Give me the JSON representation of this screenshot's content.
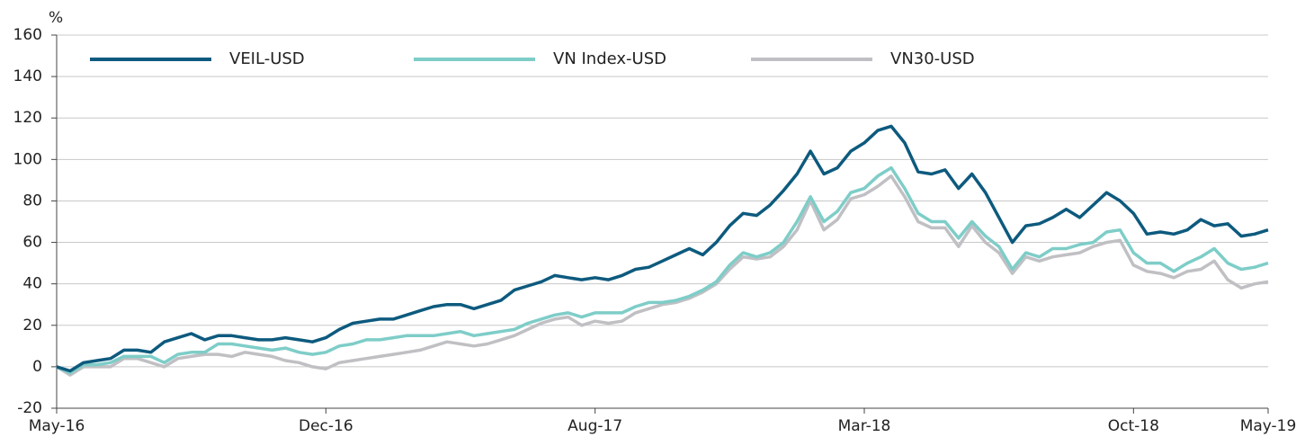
{
  "chart_data": {
    "type": "line",
    "y_label": "%",
    "categories": [
      "May-16",
      null,
      null,
      null,
      null,
      null,
      null,
      null,
      null,
      null,
      null,
      null,
      null,
      null,
      null,
      null,
      null,
      null,
      null,
      null,
      "Dec-16",
      null,
      null,
      null,
      null,
      null,
      null,
      null,
      null,
      null,
      null,
      null,
      null,
      null,
      null,
      null,
      null,
      null,
      null,
      null,
      "Aug-17",
      null,
      null,
      null,
      null,
      null,
      null,
      null,
      null,
      null,
      null,
      null,
      null,
      null,
      null,
      null,
      null,
      null,
      null,
      null,
      "Mar-18",
      null,
      null,
      null,
      null,
      null,
      null,
      null,
      null,
      null,
      null,
      null,
      null,
      null,
      null,
      null,
      null,
      null,
      null,
      null,
      "Oct-18",
      null,
      null,
      null,
      null,
      null,
      null,
      null,
      null,
      null,
      "May-19"
    ],
    "series": [
      {
        "name": "VEIL-USD",
        "color": "#0d5a7e",
        "values": [
          0,
          -2,
          2,
          3,
          4,
          8,
          8,
          7,
          12,
          14,
          16,
          13,
          15,
          15,
          14,
          13,
          13,
          14,
          13,
          12,
          14,
          18,
          21,
          22,
          23,
          23,
          25,
          27,
          29,
          30,
          30,
          28,
          30,
          32,
          37,
          39,
          41,
          44,
          43,
          42,
          43,
          42,
          44,
          47,
          48,
          51,
          54,
          57,
          54,
          60,
          68,
          74,
          73,
          78,
          85,
          93,
          104,
          93,
          96,
          104,
          108,
          114,
          116,
          108,
          94,
          93,
          95,
          86,
          93,
          84,
          72,
          60,
          68,
          69,
          72,
          76,
          72,
          78,
          84,
          80,
          74,
          64,
          65,
          64,
          66,
          71,
          68,
          69,
          63,
          64,
          66
        ]
      },
      {
        "name": "VN Index-USD",
        "color": "#7ecdc8",
        "values": [
          0,
          -3,
          1,
          1,
          2,
          5,
          5,
          5,
          2,
          6,
          7,
          7,
          11,
          11,
          10,
          9,
          8,
          9,
          7,
          6,
          7,
          10,
          11,
          13,
          13,
          14,
          15,
          15,
          15,
          16,
          17,
          15,
          16,
          17,
          18,
          21,
          23,
          25,
          26,
          24,
          26,
          26,
          26,
          29,
          31,
          31,
          32,
          34,
          37,
          41,
          49,
          55,
          53,
          55,
          60,
          70,
          82,
          70,
          75,
          84,
          86,
          92,
          96,
          86,
          74,
          70,
          70,
          62,
          70,
          63,
          58,
          47,
          55,
          53,
          57,
          57,
          59,
          60,
          65,
          66,
          55,
          50,
          50,
          46,
          50,
          53,
          57,
          50,
          47,
          48,
          50
        ]
      },
      {
        "name": "VN30-USD",
        "color": "#c0c0c4",
        "values": [
          0,
          -4,
          0,
          0,
          0,
          4,
          4,
          2,
          0,
          4,
          5,
          6,
          6,
          5,
          7,
          6,
          5,
          3,
          2,
          0,
          -1,
          2,
          3,
          4,
          5,
          6,
          7,
          8,
          10,
          12,
          11,
          10,
          11,
          13,
          15,
          18,
          21,
          23,
          24,
          20,
          22,
          21,
          22,
          26,
          28,
          30,
          31,
          33,
          36,
          40,
          47,
          53,
          52,
          53,
          58,
          66,
          80,
          66,
          71,
          81,
          83,
          87,
          92,
          82,
          70,
          67,
          67,
          58,
          68,
          60,
          55,
          45,
          53,
          51,
          53,
          54,
          55,
          58,
          60,
          61,
          49,
          46,
          45,
          43,
          46,
          47,
          51,
          42,
          38,
          40,
          41
        ]
      }
    ],
    "ylim": [
      -20,
      160
    ],
    "yticks": [
      -20,
      0,
      20,
      40,
      60,
      80,
      100,
      120,
      140,
      160
    ],
    "grid": true,
    "legend": "top"
  }
}
